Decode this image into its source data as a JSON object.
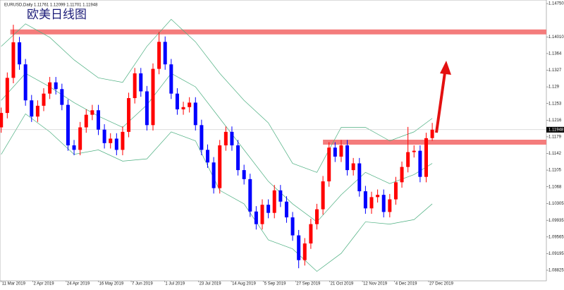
{
  "chart_data": {
    "type": "candlestick",
    "title": "欧美日线图",
    "header": "EURUSD,Daily 1.11761 1.12099 1.11701 1.11948",
    "x": [
      0,
      1,
      2,
      3,
      4,
      5,
      6,
      7,
      8,
      9,
      10,
      11,
      12,
      13,
      14,
      15,
      16,
      17,
      18,
      19,
      20,
      21,
      22,
      23,
      24,
      25,
      26,
      27,
      28,
      29,
      30,
      31,
      32,
      33,
      34,
      35,
      36,
      37,
      38,
      39,
      40,
      41,
      42,
      43,
      44,
      45,
      46,
      47,
      48,
      49,
      50,
      51,
      52,
      53,
      54,
      55,
      56,
      57,
      58,
      59,
      60,
      61,
      62,
      63,
      64,
      65,
      66,
      67,
      68,
      69,
      70,
      71
    ],
    "open": [
      1.12,
      1.1232,
      1.131,
      1.1389,
      1.134,
      1.126,
      1.1224,
      1.1248,
      1.1275,
      1.13,
      1.1285,
      1.125,
      1.116,
      1.115,
      1.12,
      1.1228,
      1.1238,
      1.1195,
      1.1165,
      1.1175,
      1.115,
      1.119,
      1.1265,
      1.132,
      1.128,
      1.1205,
      1.133,
      1.139,
      1.134,
      1.1275,
      1.124,
      1.1245,
      1.1255,
      1.1205,
      1.115,
      1.1122,
      1.1065,
      1.116,
      1.119,
      1.116,
      1.1105,
      1.1085,
      1.1013,
      1.0985,
      1.1028,
      1.101,
      1.106,
      1.1035,
      1.1,
      1.096,
      1.0905,
      1.0942,
      1.0985,
      1.1018,
      1.108,
      1.1155,
      1.1135,
      1.116,
      1.1105,
      1.112,
      1.1058,
      1.102,
      1.1045,
      1.105,
      1.1012,
      1.104,
      1.1078,
      1.1112,
      1.1145,
      1.1148,
      1.109,
      1.11761
    ],
    "high": [
      1.1244,
      1.1322,
      1.1428,
      1.1401,
      1.1352,
      1.1272,
      1.126,
      1.1287,
      1.1312,
      1.1312,
      1.1297,
      1.1262,
      1.1172,
      1.1212,
      1.124,
      1.125,
      1.125,
      1.1207,
      1.1187,
      1.1187,
      1.1202,
      1.1277,
      1.1332,
      1.1332,
      1.1292,
      1.1342,
      1.1412,
      1.1402,
      1.1352,
      1.1287,
      1.1257,
      1.1267,
      1.1267,
      1.1217,
      1.1162,
      1.1134,
      1.1172,
      1.1202,
      1.1202,
      1.1172,
      1.1117,
      1.1097,
      1.1025,
      1.104,
      1.104,
      1.1072,
      1.1072,
      1.1047,
      1.1012,
      1.0972,
      1.0954,
      1.0997,
      1.103,
      1.1092,
      1.1167,
      1.1167,
      1.1172,
      1.1172,
      1.1132,
      1.1132,
      1.107,
      1.1057,
      1.1062,
      1.1062,
      1.1052,
      1.109,
      1.1124,
      1.1201,
      1.116,
      1.116,
      1.1188,
      1.12099
    ],
    "low": [
      1.1188,
      1.122,
      1.1298,
      1.1328,
      1.1248,
      1.1212,
      1.1212,
      1.1236,
      1.1263,
      1.1273,
      1.1238,
      1.1148,
      1.1138,
      1.1138,
      1.1188,
      1.1216,
      1.1183,
      1.1153,
      1.1153,
      1.1138,
      1.1138,
      1.1178,
      1.1253,
      1.1268,
      1.1193,
      1.1193,
      1.1318,
      1.1328,
      1.1263,
      1.1228,
      1.1228,
      1.1233,
      1.1193,
      1.1138,
      1.111,
      1.1053,
      1.1053,
      1.1148,
      1.1148,
      1.1093,
      1.1073,
      1.1001,
      1.0973,
      1.0973,
      1.0998,
      1.0998,
      1.1023,
      1.0988,
      1.0948,
      1.0887,
      1.0893,
      1.093,
      1.0973,
      1.1006,
      1.1068,
      1.1123,
      1.1123,
      1.1093,
      1.1093,
      1.1046,
      1.1008,
      1.1008,
      1.1033,
      1.1,
      1.1,
      1.1028,
      1.1066,
      1.11,
      1.1133,
      1.1078,
      1.1078,
      1.11701
    ],
    "close": [
      1.1232,
      1.131,
      1.1389,
      1.134,
      1.126,
      1.1224,
      1.1248,
      1.1275,
      1.13,
      1.1285,
      1.125,
      1.116,
      1.115,
      1.12,
      1.1228,
      1.1238,
      1.1195,
      1.1165,
      1.1175,
      1.115,
      1.119,
      1.1265,
      1.132,
      1.128,
      1.1205,
      1.133,
      1.139,
      1.134,
      1.1275,
      1.124,
      1.1245,
      1.1255,
      1.1205,
      1.115,
      1.1122,
      1.1065,
      1.116,
      1.119,
      1.116,
      1.1105,
      1.1085,
      1.1013,
      1.0985,
      1.1028,
      1.101,
      1.106,
      1.1035,
      1.1,
      1.096,
      1.0905,
      1.0942,
      1.0985,
      1.1018,
      1.108,
      1.1155,
      1.1135,
      1.116,
      1.1105,
      1.112,
      1.1058,
      1.102,
      1.1045,
      1.105,
      1.1012,
      1.104,
      1.1078,
      1.1112,
      1.1145,
      1.1148,
      1.109,
      1.1176,
      1.11948
    ],
    "up_color": "#ff0000",
    "down_color": "#0000ff",
    "bands": {
      "color": "#4caf80",
      "x": [
        0,
        4,
        8,
        12,
        16,
        20,
        24,
        28,
        32,
        36,
        40,
        44,
        48,
        52,
        56,
        60,
        64,
        68,
        71
      ],
      "upper": [
        1.138,
        1.143,
        1.14,
        1.135,
        1.131,
        1.13,
        1.138,
        1.144,
        1.139,
        1.132,
        1.126,
        1.121,
        1.112,
        1.11,
        1.12,
        1.12,
        1.117,
        1.119,
        1.122
      ],
      "middle": [
        1.126,
        1.132,
        1.129,
        1.1255,
        1.1225,
        1.12,
        1.125,
        1.132,
        1.129,
        1.122,
        1.115,
        1.108,
        1.103,
        1.099,
        1.105,
        1.11,
        1.1075,
        1.1095,
        1.112
      ],
      "lower": [
        1.114,
        1.123,
        1.119,
        1.114,
        1.115,
        1.1125,
        1.113,
        1.119,
        1.117,
        1.106,
        1.103,
        1.095,
        1.093,
        1.088,
        1.092,
        1.099,
        1.0985,
        1.0995,
        1.103
      ]
    },
    "levels": [
      {
        "value": 1.1412,
        "x": [
          1.5,
          89.8
        ]
      },
      {
        "value": 1.1167,
        "x": [
          53,
          89.8
        ]
      }
    ],
    "level_color": "#f47c7c",
    "xlim": [
      -0.2,
      89.8
    ],
    "ylim": [
      1.0859,
      1.1483
    ],
    "yticks": [
      {
        "value": 1.1475,
        "label": "1.14750"
      },
      {
        "value": 1.1401,
        "label": "1.14010"
      },
      1.1364,
      1.1327,
      1.129,
      1.1253,
      1.1216,
      1.1179,
      1.1142,
      1.1105,
      1.1068,
      1.10305,
      1.09935,
      1.09565,
      1.09195,
      1.08825
    ],
    "xticks": [
      {
        "value": 0,
        "label": "11 Mar 2019"
      },
      {
        "value": 5.2,
        "label": "2 Apr 2019"
      },
      {
        "value": 10.7,
        "label": "24 Apr 2019"
      },
      {
        "value": 16,
        "label": "16 May 2019"
      },
      {
        "value": 21.4,
        "label": "7 Jun 2019"
      },
      {
        "value": 26.9,
        "label": "1 Jul 2019"
      },
      {
        "value": 32.5,
        "label": "23 Jul 2019"
      },
      {
        "value": 37.9,
        "label": "14 Aug 2019"
      },
      {
        "value": 43.2,
        "label": "5 Sep 2019"
      },
      {
        "value": 48.5,
        "label": "27 Sep 2019"
      },
      {
        "value": 54.1,
        "label": "21 Oct 2019"
      },
      {
        "value": 59.5,
        "label": "12 Nov 2019"
      },
      {
        "value": 64.8,
        "label": "4 Dec 2019"
      },
      {
        "value": 70.4,
        "label": "27 Dec 2019"
      }
    ]
  }
}
